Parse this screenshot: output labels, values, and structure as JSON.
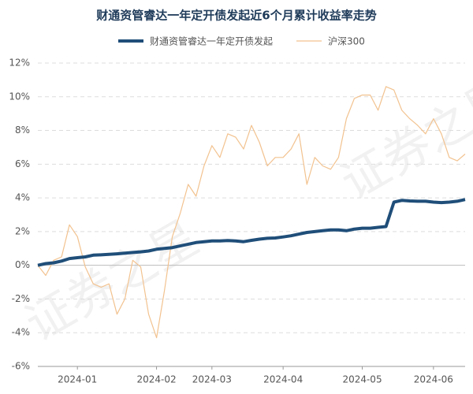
{
  "chart_data": {
    "type": "line",
    "title": "财通资管睿达一年定开债发起近6个月累计收益率走势",
    "watermark": "证券之星",
    "categories": [
      null,
      null,
      null,
      null,
      null,
      "2024-01",
      null,
      null,
      null,
      null,
      null,
      null,
      null,
      null,
      null,
      "2024-02",
      null,
      null,
      null,
      null,
      null,
      null,
      "2024-03",
      null,
      null,
      null,
      null,
      null,
      null,
      null,
      null,
      "2024-04",
      null,
      null,
      null,
      null,
      null,
      null,
      null,
      null,
      null,
      "2024-05",
      null,
      null,
      null,
      null,
      null,
      null,
      null,
      null,
      "2024-06",
      null,
      null,
      null,
      null
    ],
    "series": [
      {
        "name": "财通资管睿达一年定开债发起",
        "color": "#1f4e79",
        "width": 4,
        "values": [
          0.0,
          0.1,
          0.15,
          0.25,
          0.4,
          0.45,
          0.5,
          0.6,
          0.62,
          0.65,
          0.68,
          0.72,
          0.76,
          0.8,
          0.85,
          0.95,
          1.0,
          1.05,
          1.15,
          1.25,
          1.35,
          1.4,
          1.45,
          1.45,
          1.47,
          1.45,
          1.4,
          1.48,
          1.55,
          1.6,
          1.62,
          1.68,
          1.75,
          1.85,
          1.95,
          2.0,
          2.05,
          2.1,
          2.1,
          2.05,
          2.15,
          2.2,
          2.2,
          2.25,
          2.3,
          3.75,
          3.85,
          3.82,
          3.8,
          3.8,
          3.75,
          3.72,
          3.75,
          3.8,
          3.9
        ]
      },
      {
        "name": "沪深300",
        "color": "#f2c28f",
        "width": 1.2,
        "values": [
          0.0,
          -0.6,
          0.3,
          0.5,
          2.4,
          1.7,
          -0.1,
          -1.1,
          -1.3,
          -1.1,
          -2.9,
          -2.0,
          0.3,
          -0.1,
          -2.9,
          -4.3,
          -1.5,
          1.7,
          3.1,
          4.8,
          4.1,
          5.9,
          7.1,
          6.4,
          7.8,
          7.6,
          6.9,
          8.3,
          7.3,
          5.9,
          6.4,
          6.4,
          6.9,
          7.8,
          4.8,
          6.4,
          5.9,
          5.7,
          6.4,
          8.7,
          9.9,
          10.1,
          10.1,
          9.2,
          10.6,
          10.4,
          9.2,
          8.7,
          8.3,
          7.8,
          8.7,
          7.8,
          6.4,
          6.2,
          6.6
        ]
      }
    ],
    "ylim": [
      -6,
      12
    ],
    "yticks": [
      {
        "value": -6,
        "label": "-6%"
      },
      {
        "value": -4,
        "label": "-4%"
      },
      {
        "value": -2,
        "label": "-2%"
      },
      {
        "value": 0,
        "label": "0%"
      },
      {
        "value": 2,
        "label": "2%"
      },
      {
        "value": 4,
        "label": "4%"
      },
      {
        "value": 6,
        "label": "6%"
      },
      {
        "value": 8,
        "label": "8%"
      },
      {
        "value": 10,
        "label": "10%"
      },
      {
        "value": 12,
        "label": "12%"
      }
    ],
    "grid": true
  }
}
